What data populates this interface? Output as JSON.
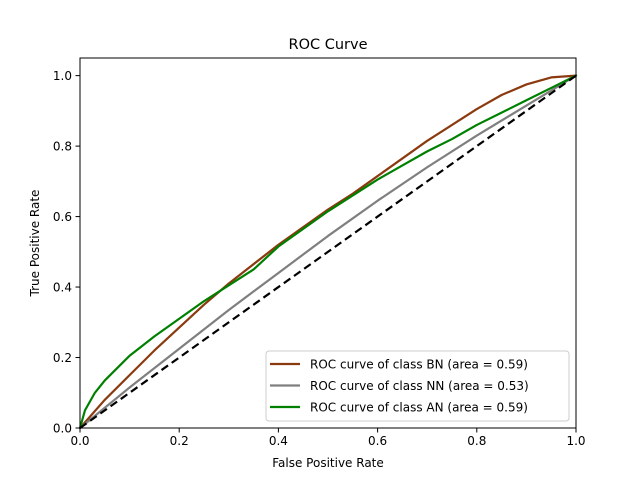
{
  "chart_data": {
    "type": "line",
    "title": "ROC Curve",
    "xlabel": "False Positive Rate",
    "ylabel": "True Positive Rate",
    "xlim": [
      0.0,
      1.0
    ],
    "ylim": [
      0.0,
      1.05
    ],
    "xticks": [
      0.0,
      0.2,
      0.4,
      0.6,
      0.8,
      1.0
    ],
    "xtick_labels": [
      "0.0",
      "0.2",
      "0.4",
      "0.6",
      "0.8",
      "1.0"
    ],
    "yticks": [
      0.0,
      0.2,
      0.4,
      0.6,
      0.8,
      1.0
    ],
    "ytick_labels": [
      "0.0",
      "0.2",
      "0.4",
      "0.6",
      "0.8",
      "1.0"
    ],
    "grid": false,
    "legend_position": "lower-right",
    "series": [
      {
        "name": "ROC curve of class BN (area = 0.59)",
        "color": "#8b3a0f",
        "x": [
          0.0,
          0.05,
          0.1,
          0.15,
          0.2,
          0.25,
          0.3,
          0.35,
          0.4,
          0.45,
          0.5,
          0.55,
          0.6,
          0.65,
          0.7,
          0.75,
          0.8,
          0.85,
          0.9,
          0.95,
          1.0
        ],
        "y": [
          0.0,
          0.08,
          0.15,
          0.22,
          0.285,
          0.35,
          0.41,
          0.465,
          0.52,
          0.57,
          0.62,
          0.665,
          0.715,
          0.765,
          0.815,
          0.86,
          0.905,
          0.945,
          0.975,
          0.995,
          1.0
        ]
      },
      {
        "name": "ROC curve of class NN (area = 0.53)",
        "color": "#7f7f7f",
        "x": [
          0.0,
          0.1,
          0.2,
          0.3,
          0.4,
          0.5,
          0.6,
          0.7,
          0.8,
          0.9,
          1.0
        ],
        "y": [
          0.0,
          0.115,
          0.225,
          0.335,
          0.44,
          0.545,
          0.645,
          0.74,
          0.83,
          0.915,
          1.0
        ]
      },
      {
        "name": "ROC curve of class AN (area = 0.59)",
        "color": "#008000",
        "x": [
          0.0,
          0.01,
          0.03,
          0.05,
          0.1,
          0.15,
          0.2,
          0.25,
          0.3,
          0.35,
          0.4,
          0.45,
          0.5,
          0.55,
          0.6,
          0.65,
          0.7,
          0.75,
          0.8,
          0.85,
          0.9,
          0.95,
          1.0
        ],
        "y": [
          0.0,
          0.05,
          0.1,
          0.135,
          0.205,
          0.26,
          0.31,
          0.36,
          0.405,
          0.45,
          0.515,
          0.565,
          0.615,
          0.66,
          0.705,
          0.745,
          0.785,
          0.82,
          0.86,
          0.895,
          0.93,
          0.965,
          1.0
        ]
      }
    ],
    "reference_line": {
      "color": "#000000",
      "style": "dashed",
      "x": [
        0.0,
        1.0
      ],
      "y": [
        0.0,
        1.0
      ]
    }
  }
}
